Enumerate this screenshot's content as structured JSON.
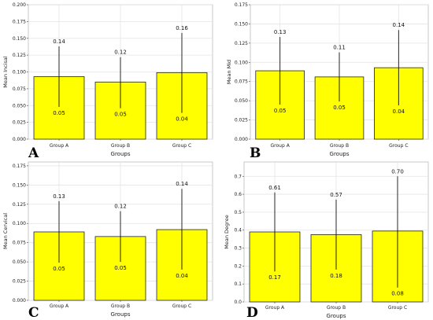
{
  "chart_data": [
    {
      "panel": "A",
      "type": "bar",
      "categories": [
        "Group A",
        "Group B",
        "Group C"
      ],
      "values": [
        0.093,
        0.085,
        0.099
      ],
      "error_upper": [
        0.138,
        0.122,
        0.158
      ],
      "error_lower": [
        0.048,
        0.046,
        0.039
      ],
      "upper_labels": [
        "0.14",
        "0.12",
        "0.16"
      ],
      "lower_labels": [
        "0.05",
        "0.05",
        "0.04"
      ],
      "ylabel": "Mean Incisal",
      "xlabel": "Groups",
      "ylim": [
        0,
        0.2
      ],
      "yticks": [
        "0.000",
        "0.025",
        "0.050",
        "0.075",
        "0.100",
        "0.125",
        "0.150",
        "0.175",
        "0.200"
      ],
      "ytick_values": [
        0,
        0.025,
        0.05,
        0.075,
        0.1,
        0.125,
        0.15,
        0.175,
        0.2
      ],
      "grid": true,
      "bar_color": "#ffff00"
    },
    {
      "panel": "B",
      "type": "bar",
      "categories": [
        "Group A",
        "Group B",
        "Group C"
      ],
      "values": [
        0.089,
        0.081,
        0.093
      ],
      "error_upper": [
        0.133,
        0.113,
        0.142
      ],
      "error_lower": [
        0.045,
        0.049,
        0.044
      ],
      "upper_labels": [
        "0.13",
        "0.11",
        "0.14"
      ],
      "lower_labels": [
        "0.05",
        "0.05",
        "0.04"
      ],
      "ylabel": "Mean Mid",
      "xlabel": "Groups",
      "ylim": [
        0,
        0.175
      ],
      "yticks": [
        "0.000",
        "0.025",
        "0.050",
        "0.075",
        "0.100",
        "0.125",
        "0.150",
        "0.175"
      ],
      "ytick_values": [
        0,
        0.025,
        0.05,
        0.075,
        0.1,
        0.125,
        0.15,
        0.175
      ],
      "grid": true,
      "bar_color": "#ffff00"
    },
    {
      "panel": "C",
      "type": "bar",
      "categories": [
        "Group A",
        "Group B",
        "Group C"
      ],
      "values": [
        0.089,
        0.083,
        0.092
      ],
      "error_upper": [
        0.129,
        0.116,
        0.145
      ],
      "error_lower": [
        0.049,
        0.05,
        0.04
      ],
      "upper_labels": [
        "0.13",
        "0.12",
        "0.14"
      ],
      "lower_labels": [
        "0.05",
        "0.05",
        "0.04"
      ],
      "ylabel": "Mean Cervical",
      "xlabel": "Groups",
      "ylim": [
        0,
        0.18
      ],
      "yticks": [
        "0.000",
        "0.025",
        "0.050",
        "0.075",
        "0.100",
        "0.125",
        "0.150",
        "0.175"
      ],
      "ytick_values": [
        0,
        0.025,
        0.05,
        0.075,
        0.1,
        0.125,
        0.15,
        0.175
      ],
      "grid": true,
      "bar_color": "#ffff00"
    },
    {
      "panel": "D",
      "type": "bar",
      "categories": [
        "Group A",
        "Group B",
        "Group C"
      ],
      "values": [
        0.39,
        0.375,
        0.395
      ],
      "error_upper": [
        0.61,
        0.57,
        0.7
      ],
      "error_lower": [
        0.17,
        0.18,
        0.08
      ],
      "upper_labels": [
        "0.61",
        "0.57",
        "0.70"
      ],
      "lower_labels": [
        "0.17",
        "0.18",
        "0.08"
      ],
      "ylabel": "Mean Degree",
      "xlabel": "Groups",
      "ylim": [
        0,
        0.78
      ],
      "yticks": [
        "0.0",
        "0.1",
        "0.2",
        "0.3",
        "0.4",
        "0.5",
        "0.6",
        "0.7"
      ],
      "ytick_values": [
        0,
        0.1,
        0.2,
        0.3,
        0.4,
        0.5,
        0.6,
        0.7
      ],
      "grid": true,
      "bar_color": "#ffff00"
    }
  ]
}
